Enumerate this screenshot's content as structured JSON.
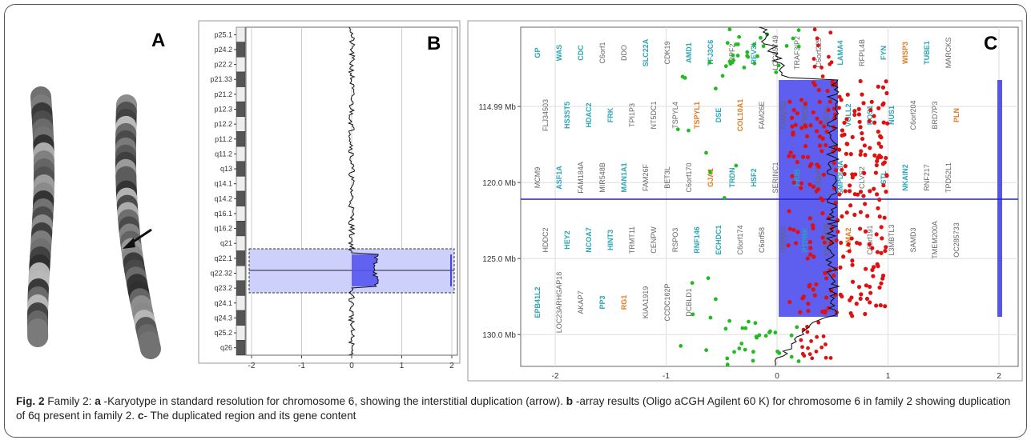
{
  "panels": {
    "a": {
      "letter": "A"
    },
    "b": {
      "letter": "B",
      "bands": [
        "p25.1",
        "p24.2",
        "p22.2",
        "p21.33",
        "p21.2",
        "p12.3",
        "p12.2",
        "p11.2",
        "q11.2",
        "q13",
        "q14.1",
        "q14.2",
        "q16.1",
        "q16.2",
        "q21",
        "q22.1",
        "q22.32",
        "q23.2",
        "q24.1",
        "q24.3",
        "q25.2",
        "q26"
      ],
      "x_ticks": [
        "-2",
        "-1",
        "0",
        "1",
        "2"
      ]
    },
    "c": {
      "letter": "C",
      "y_ticks": [
        "114.99 Mb",
        "120.0 Mb",
        "125.0 Mb",
        "130.0 Mb"
      ],
      "x_ticks": [
        "-2",
        "-1",
        "0",
        "1",
        "2"
      ],
      "genes": [
        {
          "t": "GP",
          "c": "teal"
        },
        {
          "t": "WAS",
          "c": "teal"
        },
        {
          "t": "CDC",
          "c": "teal"
        },
        {
          "t": "C6orf1",
          "c": "gray"
        },
        {
          "t": "DDO",
          "c": "gray"
        },
        {
          "t": "SLC22A",
          "c": "teal"
        },
        {
          "t": "CDK19",
          "c": "gray"
        },
        {
          "t": "AMD1",
          "c": "teal"
        },
        {
          "t": "TFJ3C6",
          "c": "teal"
        },
        {
          "t": "RPF2",
          "c": "gray"
        },
        {
          "t": "REV3L",
          "c": "teal"
        },
        {
          "t": "LOC85749",
          "c": "gray"
        },
        {
          "t": "TRAF3IP2",
          "c": "gray"
        },
        {
          "t": "C6orf225",
          "c": "gray"
        },
        {
          "t": "LAMA4",
          "c": "teal"
        },
        {
          "t": "RFPL4B",
          "c": "gray"
        },
        {
          "t": "FYN",
          "c": "teal"
        },
        {
          "t": "WISP3",
          "c": "orange"
        },
        {
          "t": "TUBE1",
          "c": "teal"
        },
        {
          "t": "MARCKS",
          "c": "gray"
        },
        {
          "t": "FLJ34503",
          "c": "gray"
        },
        {
          "t": "HS3ST5",
          "c": "teal"
        },
        {
          "t": "HDAC2",
          "c": "teal"
        },
        {
          "t": "FRK",
          "c": "teal"
        },
        {
          "t": "TPI1P3",
          "c": "gray"
        },
        {
          "t": "NT5DC1",
          "c": "gray"
        },
        {
          "t": "TSPYL4",
          "c": "gray"
        },
        {
          "t": "TSPYL1",
          "c": "orange"
        },
        {
          "t": "DSE",
          "c": "teal"
        },
        {
          "t": "COL10A1",
          "c": "orange"
        },
        {
          "t": "FAM26E",
          "c": "gray"
        },
        {
          "t": "FAM26D",
          "c": "gray"
        },
        {
          "t": "GPRC6A",
          "c": "gray"
        },
        {
          "t": "RFX6",
          "c": "gray"
        },
        {
          "t": "VGLL2",
          "c": "teal"
        },
        {
          "t": "ROS1",
          "c": "teal"
        },
        {
          "t": "NUS1",
          "c": "teal"
        },
        {
          "t": "C6orf204",
          "c": "gray"
        },
        {
          "t": "BRD7P3",
          "c": "gray"
        },
        {
          "t": "PLN",
          "c": "orange"
        },
        {
          "t": "MCM9",
          "c": "gray"
        },
        {
          "t": "ASF1A",
          "c": "teal"
        },
        {
          "t": "FAM184A",
          "c": "gray"
        },
        {
          "t": "MIR548B",
          "c": "gray"
        },
        {
          "t": "MAN1A1",
          "c": "teal"
        },
        {
          "t": "FAM26F",
          "c": "gray"
        },
        {
          "t": "BET3L",
          "c": "gray"
        },
        {
          "t": "C6orf170",
          "c": "gray"
        },
        {
          "t": "GJA1",
          "c": "orange"
        },
        {
          "t": "TRDN",
          "c": "teal"
        },
        {
          "t": "HSF2",
          "c": "teal"
        },
        {
          "t": "SERINC1",
          "c": "gray"
        },
        {
          "t": "PKIB",
          "c": "teal"
        },
        {
          "t": "FABP7",
          "c": "gray"
        },
        {
          "t": "SMPDL3A",
          "c": "teal"
        },
        {
          "t": "CLVS2",
          "c": "gray"
        },
        {
          "t": "STL",
          "c": "teal"
        },
        {
          "t": "NKAIN2",
          "c": "teal"
        },
        {
          "t": "RNF217",
          "c": "gray"
        },
        {
          "t": "TPD52L1",
          "c": "gray"
        },
        {
          "t": "HDDC2",
          "c": "gray"
        },
        {
          "t": "HEY2",
          "c": "teal"
        },
        {
          "t": "NCOA7",
          "c": "teal"
        },
        {
          "t": "HINT3",
          "c": "teal"
        },
        {
          "t": "TRMT11",
          "c": "gray"
        },
        {
          "t": "CENPW",
          "c": "gray"
        },
        {
          "t": "RSPO3",
          "c": "gray"
        },
        {
          "t": "RNF146",
          "c": "teal"
        },
        {
          "t": "ECHDC1",
          "c": "teal"
        },
        {
          "t": "C6orf174",
          "c": "gray"
        },
        {
          "t": "C6orf58",
          "c": "gray"
        },
        {
          "t": "THEMIS",
          "c": "gray"
        },
        {
          "t": "PTPRK",
          "c": "teal"
        },
        {
          "t": "KIAA0408",
          "c": "gray"
        },
        {
          "t": "LAMA2",
          "c": "orange"
        },
        {
          "t": "C6orf191",
          "c": "gray"
        },
        {
          "t": "L3MBTL3",
          "c": "gray"
        },
        {
          "t": "SAMD3",
          "c": "gray"
        },
        {
          "t": "TMEM200A",
          "c": "gray"
        },
        {
          "t": "OC285733",
          "c": "gray"
        },
        {
          "t": "EPB41L2",
          "c": "teal"
        },
        {
          "t": "LOC23ARHGAP18",
          "c": "gray"
        },
        {
          "t": "AKAP7",
          "c": "gray"
        },
        {
          "t": "PP3",
          "c": "teal"
        },
        {
          "t": "RG1",
          "c": "orange"
        },
        {
          "t": "KIAA1919",
          "c": "gray"
        },
        {
          "t": "CCDC162P",
          "c": "gray"
        },
        {
          "t": "DCBLD1",
          "c": "gray"
        }
      ]
    }
  },
  "caption": {
    "fig_label": "Fig. 2",
    "intro": " Family 2: ",
    "a_key": "a",
    "a_text": " -Karyotype in standard resolution for chromosome 6, showing the interstitial duplication (arrow). ",
    "b_key": "b",
    "b_text": " -array results (Oligo aCGH Agilent 60 K) for chromosome 6 in family 2 showing duplication of 6q present in family 2. ",
    "c_key": "c",
    "c_text": "- The duplicated region and its gene content"
  },
  "colors": {
    "teal": "#2aa5b5",
    "orange": "#e07b22",
    "gray": "#666666",
    "blue": "#5555ee",
    "red": "#dd1111",
    "green": "#22bb22"
  }
}
